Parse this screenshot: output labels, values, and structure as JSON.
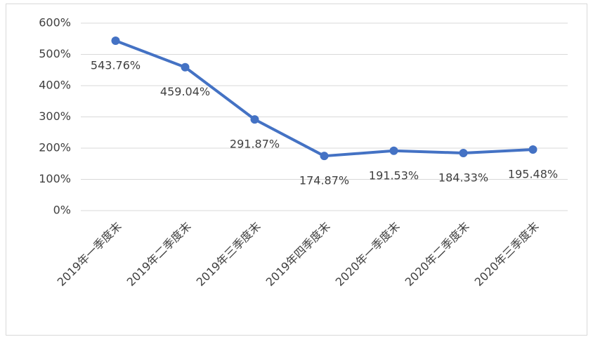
{
  "chart_data": {
    "type": "line",
    "categories": [
      "2019年一季度末",
      "2019年二季度末",
      "2019年三季度末",
      "2019年四季度末",
      "2020年一季度末",
      "2020年二季度末",
      "2020年三季度末"
    ],
    "series": [
      {
        "color": "#4472c4",
        "values": [
          543.76,
          459.04,
          291.87,
          174.87,
          191.53,
          184.33,
          195.48
        ],
        "value_labels": [
          "543.76%",
          "459.04%",
          "291.87%",
          "174.87%",
          "191.53%",
          "184.33%",
          "195.48%"
        ]
      }
    ],
    "ylim": [
      0,
      600
    ],
    "yticks": [
      {
        "value": 0,
        "label": "0%"
      },
      {
        "value": 100,
        "label": "100%"
      },
      {
        "value": 200,
        "label": "200%"
      },
      {
        "value": 300,
        "label": "300%"
      },
      {
        "value": 400,
        "label": "400%"
      },
      {
        "value": 500,
        "label": "500%"
      },
      {
        "value": 600,
        "label": "600%"
      }
    ],
    "grid": true
  }
}
